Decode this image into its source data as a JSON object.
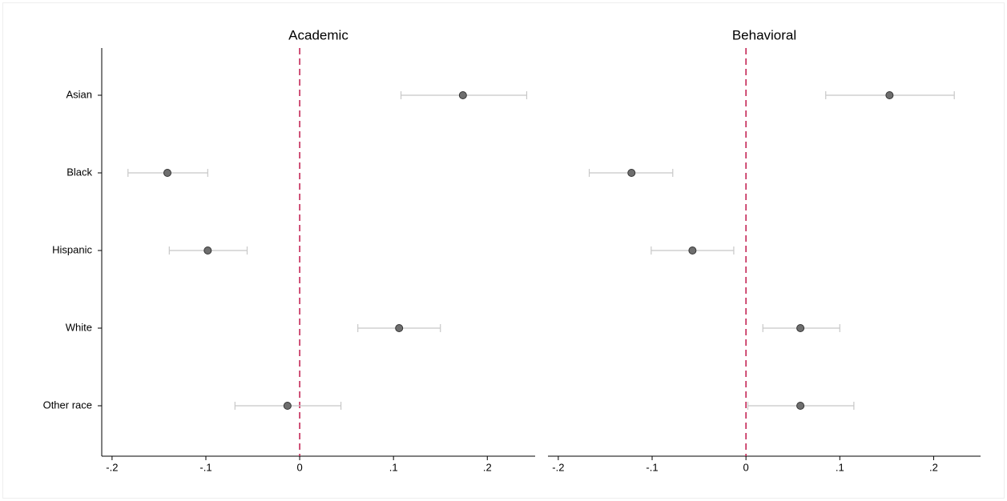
{
  "chart_data": [
    {
      "type": "dot",
      "title": "Academic",
      "categories": [
        "Asian",
        "Black",
        "Hispanic",
        "White",
        "Other race"
      ],
      "values": [
        0.174,
        -0.141,
        -0.098,
        0.106,
        -0.013
      ],
      "lower": [
        0.108,
        -0.183,
        -0.139,
        0.062,
        -0.069
      ],
      "upper": [
        0.242,
        -0.098,
        -0.056,
        0.15,
        0.044
      ],
      "color": "#6e6e6e",
      "error_color": "#c8c8c8",
      "xline": 0,
      "xline_color": "#c0174a",
      "xlim": [
        -0.211,
        0.251
      ],
      "xticks": [
        {
          "value": -0.2,
          "label": "-.2"
        },
        {
          "value": -0.1,
          "label": "-.1"
        },
        0,
        {
          "value": 0.1,
          "label": ".1"
        },
        {
          "value": 0.2,
          "label": ".2"
        }
      ]
    },
    {
      "type": "dot",
      "title": "Behavioral",
      "values": [
        0.153,
        -0.122,
        -0.057,
        0.058,
        0.058
      ],
      "lower": [
        0.085,
        -0.167,
        -0.101,
        0.018,
        0.002
      ],
      "upper": [
        0.222,
        -0.078,
        -0.013,
        0.1,
        0.115
      ],
      "color": "#6e6e6e",
      "error_color": "#c8c8c8",
      "xline": 0,
      "xline_color": "#c0174a",
      "xlim": [
        -0.211,
        0.25
      ],
      "xticks": [
        {
          "value": -0.2,
          "label": "-.2"
        },
        {
          "value": -0.1,
          "label": "-.1"
        },
        0,
        {
          "value": 0.1,
          "label": ".1"
        },
        {
          "value": 0.2,
          "label": ".2"
        }
      ]
    }
  ]
}
